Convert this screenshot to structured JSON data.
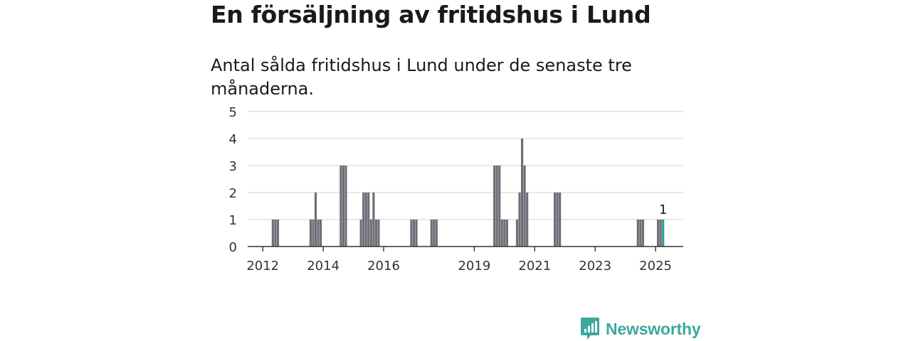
{
  "title": "En försäljning av fritidshus i Lund",
  "subtitle": "Antal sålda fritidshus i Lund under de senaste tre månaderna.",
  "brand": {
    "name": "Newsworthy",
    "color": "#3ea79b",
    "icon": "newsworthy-logo-icon"
  },
  "colors": {
    "bar": "#6e6e77",
    "highlight": "#2aa196",
    "grid": "#d9d9d9",
    "axis": "#333333"
  },
  "chart_data": {
    "type": "bar",
    "title": "En försäljning av fritidshus i Lund",
    "subtitle": "Antal sålda fritidshus i Lund under de senaste tre månaderna.",
    "xlabel": "",
    "ylabel": "",
    "ylim": [
      0,
      5
    ],
    "yticks": [
      0,
      1,
      2,
      3,
      4,
      5
    ],
    "x_range": [
      "2011-07",
      "2025-12"
    ],
    "xticks": [
      {
        "label": "2012",
        "date": "2012-01"
      },
      {
        "label": "2014",
        "date": "2014-01"
      },
      {
        "label": "2016",
        "date": "2016-01"
      },
      {
        "label": "2019",
        "date": "2019-01"
      },
      {
        "label": "2021",
        "date": "2021-01"
      },
      {
        "label": "2023",
        "date": "2023-01"
      },
      {
        "label": "2025",
        "date": "2025-01"
      }
    ],
    "grid": true,
    "legend": "none",
    "x": [
      "2012-05",
      "2012-06",
      "2012-07",
      "2013-08",
      "2013-09",
      "2013-10",
      "2013-11",
      "2013-12",
      "2014-08",
      "2014-09",
      "2014-10",
      "2015-04",
      "2015-05",
      "2015-06",
      "2015-07",
      "2015-08",
      "2015-09",
      "2015-10",
      "2015-11",
      "2016-12",
      "2017-01",
      "2017-02",
      "2017-08",
      "2017-09",
      "2017-10",
      "2019-09",
      "2019-10",
      "2019-11",
      "2019-12",
      "2020-01",
      "2020-02",
      "2020-06",
      "2020-07",
      "2020-08",
      "2020-09",
      "2020-10",
      "2021-09",
      "2021-10",
      "2021-11",
      "2024-06",
      "2024-07",
      "2024-08",
      "2025-02",
      "2025-03",
      "2025-04"
    ],
    "values": [
      1,
      1,
      1,
      1,
      1,
      2,
      1,
      1,
      3,
      3,
      3,
      1,
      2,
      2,
      2,
      1,
      2,
      1,
      1,
      1,
      1,
      1,
      1,
      1,
      1,
      3,
      3,
      3,
      1,
      1,
      1,
      1,
      2,
      4,
      3,
      2,
      2,
      2,
      2,
      1,
      1,
      1,
      1,
      1,
      1
    ],
    "highlight": {
      "date": "2025-04",
      "value": 1,
      "label": "1"
    }
  }
}
